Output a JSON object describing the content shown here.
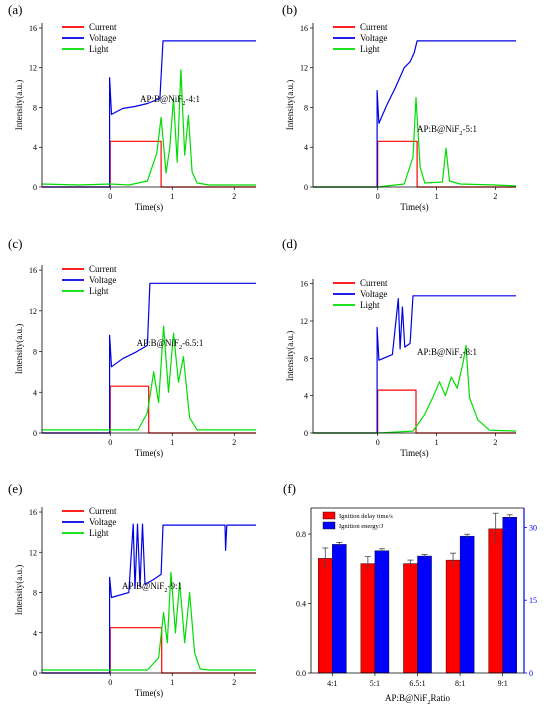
{
  "chart_data": [
    {
      "panel_label": "(a)",
      "type": "line",
      "xlabel": "Time(s)",
      "ylabel": "Intensity(a.u.)",
      "xlim": [
        -1.1,
        2.35
      ],
      "ylim": [
        0,
        16.5
      ],
      "xticks": [
        0,
        1,
        2
      ],
      "yticks": [
        0,
        4,
        8,
        12,
        16
      ],
      "annotation": {
        "prefix": "AP:B@NiF",
        "sub": "2",
        "suffix": "-4:1"
      },
      "legend": [
        "Current",
        "Voltage",
        "Light"
      ],
      "series": [
        {
          "name": "Current",
          "points": [
            [
              -1.1,
              0
            ],
            [
              0,
              0
            ],
            [
              0,
              4.6
            ],
            [
              0.82,
              4.6
            ],
            [
              0.82,
              0
            ],
            [
              2.35,
              0
            ]
          ]
        },
        {
          "name": "Voltage",
          "points": [
            [
              -1.1,
              0
            ],
            [
              -0.01,
              0
            ],
            [
              -0.01,
              11
            ],
            [
              0.02,
              7.3
            ],
            [
              0.2,
              7.9
            ],
            [
              0.4,
              8.1
            ],
            [
              0.6,
              8.4
            ],
            [
              0.8,
              8.9
            ],
            [
              0.85,
              14.7
            ],
            [
              2.35,
              14.7
            ]
          ]
        },
        {
          "name": "Light",
          "points": [
            [
              -1.1,
              0.3
            ],
            [
              -0.5,
              0.2
            ],
            [
              0,
              0.3
            ],
            [
              0.3,
              0.2
            ],
            [
              0.6,
              0.6
            ],
            [
              0.75,
              3.4
            ],
            [
              0.82,
              7
            ],
            [
              0.9,
              1.4
            ],
            [
              0.96,
              4
            ],
            [
              1.02,
              8.9
            ],
            [
              1.08,
              2.5
            ],
            [
              1.14,
              11.8
            ],
            [
              1.2,
              3.2
            ],
            [
              1.26,
              7.2
            ],
            [
              1.32,
              1.5
            ],
            [
              1.4,
              0.4
            ],
            [
              1.6,
              0.2
            ],
            [
              2.35,
              0.2
            ]
          ]
        }
      ]
    },
    {
      "panel_label": "(b)",
      "type": "line",
      "xlabel": "Time(s)",
      "ylabel": "Intensity(a.u.)",
      "xlim": [
        -1.1,
        2.35
      ],
      "ylim": [
        0,
        16.5
      ],
      "xticks": [
        0,
        1,
        2
      ],
      "yticks": [
        0,
        4,
        8,
        12,
        16
      ],
      "annotation": {
        "prefix": "AP:B@NiF",
        "sub": "2",
        "suffix": "-5:1"
      },
      "legend": [
        "Current",
        "Voltage",
        "Light"
      ],
      "series": [
        {
          "name": "Current",
          "points": [
            [
              -1.1,
              0
            ],
            [
              0,
              0
            ],
            [
              0,
              4.6
            ],
            [
              0.67,
              4.6
            ],
            [
              0.67,
              0
            ],
            [
              2.35,
              0
            ]
          ]
        },
        {
          "name": "Voltage",
          "points": [
            [
              -1.1,
              0
            ],
            [
              -0.01,
              0
            ],
            [
              -0.01,
              9.7
            ],
            [
              0.02,
              6.4
            ],
            [
              0.15,
              8.2
            ],
            [
              0.3,
              10
            ],
            [
              0.45,
              12
            ],
            [
              0.55,
              12.6
            ],
            [
              0.62,
              13.5
            ],
            [
              0.67,
              14.7
            ],
            [
              2.35,
              14.7
            ]
          ]
        },
        {
          "name": "Light",
          "points": [
            [
              -1.1,
              0
            ],
            [
              0,
              0
            ],
            [
              0.45,
              0.3
            ],
            [
              0.6,
              3
            ],
            [
              0.65,
              9
            ],
            [
              0.72,
              2
            ],
            [
              0.8,
              0.4
            ],
            [
              1.1,
              0.5
            ],
            [
              1.16,
              3.9
            ],
            [
              1.22,
              0.6
            ],
            [
              1.4,
              0.3
            ],
            [
              2.0,
              0.2
            ],
            [
              2.35,
              0.1
            ]
          ]
        }
      ]
    },
    {
      "panel_label": "(c)",
      "type": "line",
      "xlabel": "Time(s)",
      "ylabel": "Intensity(a.u.)",
      "xlim": [
        -1.1,
        2.35
      ],
      "ylim": [
        0,
        16.5
      ],
      "xticks": [
        0,
        1,
        2
      ],
      "yticks": [
        0,
        4,
        8,
        12,
        16
      ],
      "annotation": {
        "prefix": "AP:B@NiF",
        "sub": "2",
        "suffix": "-6.5:1"
      },
      "legend": [
        "Current",
        "Voltage",
        "Light"
      ],
      "series": [
        {
          "name": "Current",
          "points": [
            [
              -1.1,
              0
            ],
            [
              0,
              0
            ],
            [
              0,
              4.6
            ],
            [
              0.62,
              4.6
            ],
            [
              0.62,
              0
            ],
            [
              2.35,
              0
            ]
          ]
        },
        {
          "name": "Voltage",
          "points": [
            [
              -1.1,
              0
            ],
            [
              -0.01,
              0
            ],
            [
              -0.01,
              9.6
            ],
            [
              0.02,
              6.5
            ],
            [
              0.2,
              7.3
            ],
            [
              0.4,
              7.9
            ],
            [
              0.6,
              8.6
            ],
            [
              0.64,
              14.7
            ],
            [
              2.35,
              14.7
            ]
          ]
        },
        {
          "name": "Light",
          "points": [
            [
              -1.1,
              0.3
            ],
            [
              0,
              0.3
            ],
            [
              0.45,
              0.3
            ],
            [
              0.6,
              2
            ],
            [
              0.7,
              6
            ],
            [
              0.78,
              3
            ],
            [
              0.86,
              10.5
            ],
            [
              0.94,
              4
            ],
            [
              1.02,
              9.8
            ],
            [
              1.1,
              5
            ],
            [
              1.18,
              7.5
            ],
            [
              1.28,
              1.5
            ],
            [
              1.4,
              0.3
            ],
            [
              2.35,
              0.3
            ]
          ]
        }
      ]
    },
    {
      "panel_label": "(d)",
      "type": "line",
      "xlabel": "Time(s)",
      "ylabel": "Intensity(a.u.)",
      "xlim": [
        -1.1,
        2.35
      ],
      "ylim": [
        0,
        16.5
      ],
      "xticks": [
        0,
        1,
        2
      ],
      "yticks": [
        0,
        4,
        8,
        12,
        16
      ],
      "annotation": {
        "prefix": "AP:B@NiF",
        "sub": "2",
        "suffix": "-8:1"
      },
      "legend": [
        "Current",
        "Voltage",
        "Light"
      ],
      "series": [
        {
          "name": "Current",
          "points": [
            [
              -1.1,
              0
            ],
            [
              0,
              0
            ],
            [
              0,
              4.6
            ],
            [
              0.65,
              4.6
            ],
            [
              0.65,
              0
            ],
            [
              2.35,
              0
            ]
          ]
        },
        {
          "name": "Voltage",
          "points": [
            [
              -1.1,
              0
            ],
            [
              -0.01,
              0
            ],
            [
              -0.01,
              11.3
            ],
            [
              0.02,
              7.8
            ],
            [
              0.25,
              8.4
            ],
            [
              0.35,
              14.4
            ],
            [
              0.38,
              9
            ],
            [
              0.42,
              13.5
            ],
            [
              0.46,
              9.2
            ],
            [
              0.55,
              9.6
            ],
            [
              0.6,
              14.7
            ],
            [
              2.35,
              14.7
            ]
          ]
        },
        {
          "name": "Light",
          "points": [
            [
              -1.1,
              0
            ],
            [
              0,
              0
            ],
            [
              0.6,
              0.2
            ],
            [
              0.8,
              2
            ],
            [
              0.95,
              4
            ],
            [
              1.05,
              5.5
            ],
            [
              1.15,
              4
            ],
            [
              1.25,
              6
            ],
            [
              1.35,
              4.8
            ],
            [
              1.45,
              7.5
            ],
            [
              1.5,
              9.4
            ],
            [
              1.56,
              3.8
            ],
            [
              1.7,
              1.4
            ],
            [
              1.9,
              0.3
            ],
            [
              2.35,
              0.2
            ]
          ]
        }
      ]
    },
    {
      "panel_label": "(e)",
      "type": "line",
      "xlabel": "Time(s)",
      "ylabel": "Intensity(a.u.)",
      "xlim": [
        -1.1,
        2.35
      ],
      "ylim": [
        0,
        16.5
      ],
      "xticks": [
        0,
        1,
        2
      ],
      "yticks": [
        0,
        4,
        8,
        12,
        16
      ],
      "annotation": {
        "prefix": "AP:B@NiF",
        "sub": "2",
        "suffix": "-9:1"
      },
      "legend": [
        "Current",
        "Voltage",
        "Light"
      ],
      "series": [
        {
          "name": "Current",
          "points": [
            [
              -1.1,
              0
            ],
            [
              0,
              0
            ],
            [
              0,
              4.5
            ],
            [
              0.83,
              4.5
            ],
            [
              0.83,
              0
            ],
            [
              2.35,
              0
            ]
          ]
        },
        {
          "name": "Voltage",
          "points": [
            [
              -1.1,
              0
            ],
            [
              -0.01,
              0
            ],
            [
              -0.01,
              9.5
            ],
            [
              0.02,
              7.5
            ],
            [
              0.3,
              8
            ],
            [
              0.37,
              14.8
            ],
            [
              0.4,
              8.4
            ],
            [
              0.44,
              14.8
            ],
            [
              0.48,
              8.6
            ],
            [
              0.52,
              14.8
            ],
            [
              0.56,
              8.8
            ],
            [
              0.7,
              9.3
            ],
            [
              0.82,
              9.8
            ],
            [
              0.85,
              14.7
            ],
            [
              1.85,
              14.7
            ],
            [
              1.86,
              12.2
            ],
            [
              1.88,
              14.7
            ],
            [
              2.35,
              14.7
            ]
          ]
        },
        {
          "name": "Light",
          "points": [
            [
              -1.1,
              0.3
            ],
            [
              0,
              0.3
            ],
            [
              0.6,
              0.3
            ],
            [
              0.78,
              1.5
            ],
            [
              0.86,
              6
            ],
            [
              0.92,
              3
            ],
            [
              0.98,
              10
            ],
            [
              1.05,
              4
            ],
            [
              1.12,
              9
            ],
            [
              1.2,
              3
            ],
            [
              1.28,
              8
            ],
            [
              1.36,
              2
            ],
            [
              1.45,
              0.4
            ],
            [
              1.6,
              0.3
            ],
            [
              2.35,
              0.3
            ]
          ]
        }
      ]
    },
    {
      "panel_label": "(f)",
      "type": "bar",
      "xlabel": {
        "prefix": "AP:B@NiF",
        "sub": "2",
        "suffix": "Ratio"
      },
      "categories": [
        "4:1",
        "5:1",
        "6.5:1",
        "8:1",
        "9:1"
      ],
      "ylim_left": [
        0,
        0.95
      ],
      "yticks_left": [
        0,
        0.4,
        0.8
      ],
      "ylim_right": [
        0,
        34
      ],
      "yticks_right": [
        0,
        15,
        30
      ],
      "legend_placement": "top-left",
      "series": [
        {
          "name": "Ignition delay time/s",
          "axis": "left",
          "values": [
            0.66,
            0.63,
            0.63,
            0.65,
            0.83
          ],
          "errors": [
            0.06,
            0.04,
            0.02,
            0.04,
            0.09
          ]
        },
        {
          "name": "Ignition energy/J",
          "axis": "right",
          "values": [
            26.5,
            25.2,
            24.1,
            28.2,
            32.1
          ],
          "errors": [
            0.4,
            0.4,
            0.3,
            0.4,
            0.5
          ]
        }
      ]
    }
  ],
  "colors": {
    "current": "#ff0000",
    "voltage": "#0000e6",
    "light": "#00dd00",
    "bar_delay": "#ff0000",
    "bar_energy": "#0000ff",
    "axis_right": "#0000ff"
  }
}
